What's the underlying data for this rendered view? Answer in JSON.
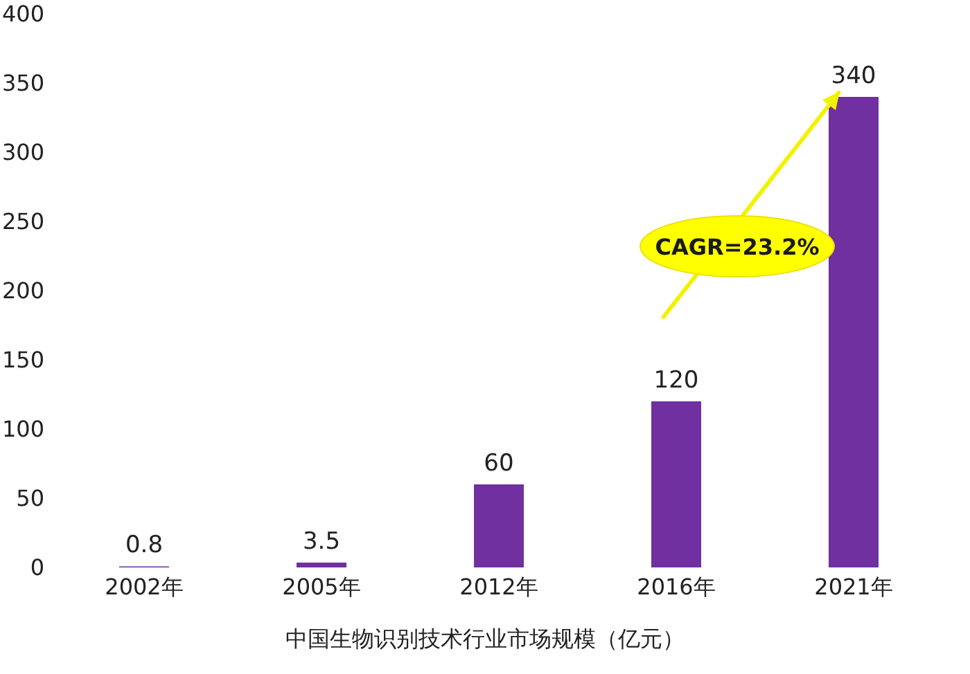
{
  "chart_data": {
    "type": "bar",
    "xlabel": "中国生物识别技术行业市场规模（亿元）",
    "categories": [
      "2002年",
      "2005年",
      "2012年",
      "2016年",
      "2021年"
    ],
    "values": [
      0.8,
      3.5,
      60,
      120,
      340
    ],
    "color": "#7030a0",
    "ylim": [
      0,
      400
    ],
    "yticks": [
      0,
      50,
      100,
      150,
      200,
      250,
      300,
      350,
      400
    ],
    "grid": false,
    "data_labels": true,
    "annotations": [
      "CAGR=23.2%"
    ]
  }
}
